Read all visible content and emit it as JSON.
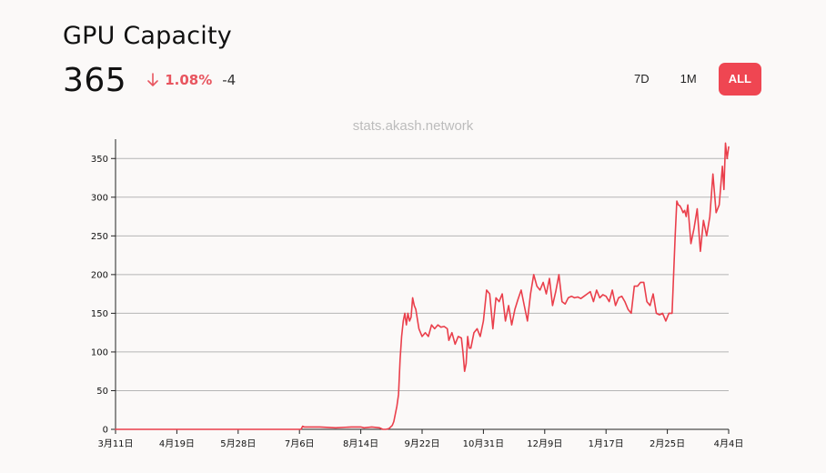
{
  "header": {
    "title": "GPU Capacity",
    "value": "365",
    "change_percent": "1.08%",
    "change_direction": "down",
    "change_absolute": "-4",
    "accent_color": "#ef4652",
    "down_color": "#e8555f"
  },
  "range_selector": {
    "options": [
      "7D",
      "1M",
      "ALL"
    ],
    "selected": "ALL"
  },
  "watermark": "stats.akash.network",
  "chart_data": {
    "type": "line",
    "title": "GPU Capacity",
    "xlabel": "",
    "ylabel": "",
    "ylim": [
      0,
      375
    ],
    "yticks": [
      0,
      50,
      100,
      150,
      200,
      250,
      300,
      350
    ],
    "xtick_labels": [
      "3月11日",
      "4月19日",
      "5月28日",
      "7月6日",
      "8月14日",
      "9月22日",
      "10月31日",
      "12月9日",
      "1月17日",
      "2月25日",
      "4月4日"
    ],
    "x_range_days": [
      0,
      390
    ],
    "grid": "horizontal",
    "line_color": "#ea3f4b",
    "series": [
      {
        "x_days": [
          0,
          50,
          100,
          118,
          119,
          120,
          130,
          140,
          150,
          156,
          158,
          163,
          168,
          170,
          172,
          174,
          176,
          177,
          178,
          179,
          180,
          181,
          182,
          183,
          184,
          185,
          186,
          187,
          188,
          189,
          190,
          191,
          193,
          195,
          197,
          199,
          201,
          203,
          205,
          207,
          209,
          211,
          212,
          214,
          216,
          218,
          220,
          221,
          222,
          223,
          224,
          225,
          226,
          228,
          230,
          232,
          234,
          236,
          238,
          240,
          242,
          244,
          246,
          248,
          250,
          252,
          254,
          256,
          258,
          260,
          262,
          264,
          266,
          268,
          270,
          272,
          274,
          276,
          278,
          280,
          282,
          284,
          286,
          288,
          290,
          292,
          294,
          296,
          298,
          300,
          302,
          304,
          306,
          308,
          310,
          312,
          314,
          316,
          318,
          320,
          322,
          324,
          326,
          328,
          330,
          332,
          334,
          336,
          338,
          340,
          342,
          344,
          346,
          348,
          350,
          352,
          354,
          356,
          357,
          358,
          359,
          360,
          361,
          362,
          363,
          364,
          366,
          368,
          370,
          372,
          374,
          376,
          378,
          380,
          382,
          384,
          386,
          387,
          388,
          389,
          390
        ],
        "values": [
          0,
          0,
          0,
          0,
          4,
          3,
          3,
          2,
          3,
          3,
          2,
          3,
          2,
          0,
          0,
          1,
          5,
          10,
          20,
          30,
          45,
          90,
          120,
          140,
          150,
          135,
          150,
          140,
          145,
          170,
          160,
          155,
          130,
          120,
          125,
          120,
          135,
          130,
          135,
          132,
          133,
          130,
          115,
          125,
          110,
          120,
          118,
          100,
          75,
          85,
          120,
          105,
          105,
          125,
          130,
          120,
          140,
          180,
          175,
          130,
          170,
          165,
          175,
          140,
          160,
          135,
          155,
          168,
          180,
          160,
          140,
          175,
          200,
          185,
          180,
          190,
          175,
          195,
          160,
          178,
          200,
          165,
          162,
          170,
          172,
          170,
          171,
          169,
          172,
          175,
          178,
          165,
          180,
          170,
          174,
          172,
          165,
          180,
          160,
          170,
          172,
          165,
          155,
          150,
          185,
          185,
          190,
          190,
          165,
          160,
          175,
          150,
          148,
          150,
          140,
          150,
          150,
          250,
          295,
          290,
          289,
          285,
          280,
          283,
          275,
          290,
          240,
          260,
          285,
          230,
          270,
          250,
          275,
          330,
          280,
          290,
          340,
          310,
          370,
          350,
          365
        ]
      }
    ]
  }
}
